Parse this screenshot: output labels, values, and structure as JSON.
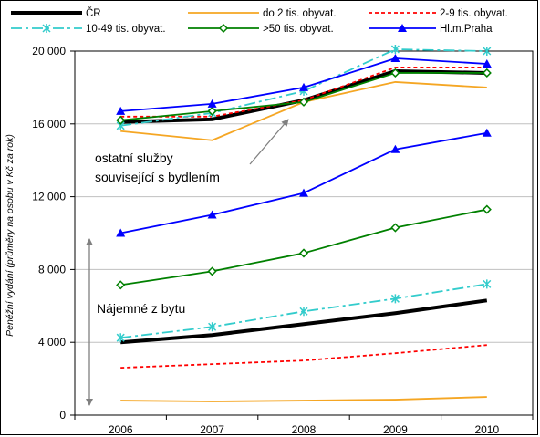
{
  "chart_data": {
    "type": "line",
    "title": "",
    "xlabel": "",
    "ylabel": "Peněžní vydání (průměry na osobu v Kč za rok)",
    "ylim": [
      0,
      20000
    ],
    "yticks": [
      0,
      4000,
      8000,
      12000,
      16000,
      20000
    ],
    "ytick_labels": [
      "0",
      "4 000",
      "8 000",
      "12 000",
      "16 000",
      "20 000"
    ],
    "categories": [
      "2006",
      "2007",
      "2008",
      "2009",
      "2010"
    ],
    "grid": "horizontal",
    "legend_position": "top",
    "annotations": [
      {
        "text_lines": [
          "ostatní služby",
          "související s bydlením"
        ]
      },
      {
        "text_lines": [
          "Nájemné z bytu"
        ]
      }
    ],
    "series": [
      {
        "name": "ČR",
        "color": "#000000",
        "style": "solid-thick",
        "marker": "none",
        "group": "upper",
        "values": [
          16100,
          16250,
          17300,
          18900,
          18800
        ]
      },
      {
        "name": "do 2 tis. obyvat.",
        "color": "#f5a623",
        "style": "solid",
        "marker": "none",
        "group": "upper",
        "values": [
          15600,
          15100,
          17200,
          18300,
          18000
        ]
      },
      {
        "name": "2-9 tis. obyvat.",
        "color": "#ff0000",
        "style": "dotted",
        "marker": "none",
        "group": "upper",
        "values": [
          16400,
          16400,
          17300,
          19100,
          19100
        ]
      },
      {
        "name": "10-49 tis. obyvat.",
        "color": "#33cccc",
        "style": "dashdot",
        "marker": "star",
        "group": "upper",
        "values": [
          15900,
          16600,
          17800,
          20100,
          20000
        ]
      },
      {
        "name": ">50 tis. obyvat.",
        "color": "#008000",
        "style": "solid",
        "marker": "diamond",
        "group": "upper",
        "values": [
          16200,
          16700,
          17200,
          18800,
          18800
        ]
      },
      {
        "name": "Hl.m.Praha",
        "color": "#0000ff",
        "style": "solid",
        "marker": "triangle",
        "group": "upper",
        "values": [
          16700,
          17100,
          18000,
          19600,
          19300
        ]
      },
      {
        "name": "ČR",
        "color": "#000000",
        "style": "solid-thick",
        "marker": "none",
        "group": "lower",
        "values": [
          4000,
          4400,
          5000,
          5600,
          6300
        ]
      },
      {
        "name": "do 2 tis. obyvat.",
        "color": "#f5a623",
        "style": "solid",
        "marker": "none",
        "group": "lower",
        "values": [
          800,
          750,
          800,
          850,
          1000
        ]
      },
      {
        "name": "2-9 tis. obyvat.",
        "color": "#ff0000",
        "style": "dotted",
        "marker": "none",
        "group": "lower",
        "values": [
          2600,
          2800,
          3000,
          3400,
          3850
        ]
      },
      {
        "name": "10-49 tis. obyvat.",
        "color": "#33cccc",
        "style": "dashdot",
        "marker": "star",
        "group": "lower",
        "values": [
          4250,
          4850,
          5700,
          6400,
          7200
        ]
      },
      {
        "name": ">50 tis. obyvat.",
        "color": "#008000",
        "style": "solid",
        "marker": "diamond",
        "group": "lower",
        "values": [
          7150,
          7900,
          8900,
          10300,
          11300
        ]
      },
      {
        "name": "Hl.m.Praha",
        "color": "#0000ff",
        "style": "solid",
        "marker": "triangle",
        "group": "lower",
        "values": [
          10000,
          11000,
          12200,
          14600,
          15500
        ]
      }
    ]
  }
}
